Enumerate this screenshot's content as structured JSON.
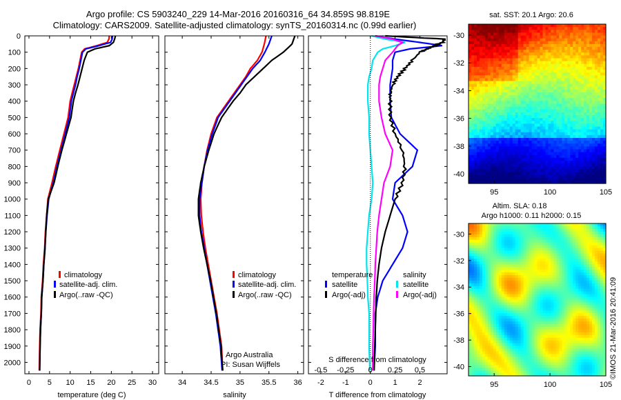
{
  "title": {
    "line1": "Argo profile: CS 5903240_229 14-Mar-2016 20160316_64 34.859S 98.819E",
    "line2": "Climatology: CARS2009. Satellite-adjusted climatology: synTS_20160314.nc (0.99d earlier)"
  },
  "colors": {
    "climatology": "#ff0000",
    "satellite_adj": "#0000ff",
    "argo": "#000000",
    "t_sat": "#00e5ee",
    "s_sat": "#00e5ee",
    "t_argo": "#000000",
    "s_argo": "#ff00ff"
  },
  "depth_axis": {
    "ticks": [
      0,
      100,
      200,
      300,
      400,
      500,
      600,
      700,
      800,
      900,
      1000,
      1100,
      1200,
      1300,
      1400,
      1500,
      1600,
      1700,
      1800,
      1900,
      2000
    ],
    "ylim": [
      0,
      2070
    ]
  },
  "chart_data": [
    {
      "type": "line",
      "name": "temperature",
      "xlabel": "temperature (deg C)",
      "xlim": [
        -1,
        31.5
      ],
      "xticks": [
        0,
        5,
        10,
        15,
        20,
        25,
        30
      ],
      "legend": {
        "placement": "lower-left",
        "items": [
          "climatology",
          "satellite-adj. clim.",
          "Argo(..raw -QC)"
        ]
      },
      "series": [
        {
          "name": "climatology",
          "color": "#ff0000",
          "x": [
            19.5,
            19.4,
            19.0,
            16.5,
            13.5,
            12.8,
            12.4,
            12.0,
            11.5,
            11.0,
            10.5,
            10.0,
            9.5,
            8.5,
            7.5,
            6.5,
            5.6,
            4.6,
            4.3,
            4.0,
            3.8,
            3.5,
            3.3,
            3.0,
            2.9,
            2.7,
            2.6,
            2.5
          ],
          "y": [
            0,
            20,
            40,
            60,
            80,
            100,
            150,
            200,
            250,
            300,
            350,
            400,
            500,
            600,
            700,
            800,
            900,
            1000,
            1100,
            1200,
            1300,
            1400,
            1500,
            1600,
            1700,
            1800,
            1900,
            2050
          ]
        },
        {
          "name": "satellite-adj. clim.",
          "color": "#0000ff",
          "x": [
            20.3,
            20.2,
            19.8,
            17.0,
            13.8,
            13.0,
            12.6,
            12.2,
            11.7,
            11.3,
            10.8,
            10.3,
            9.8,
            8.8,
            7.8,
            6.8,
            5.9,
            4.8,
            4.4,
            4.1,
            3.9,
            3.6,
            3.4,
            3.1,
            3.0,
            2.8,
            2.7,
            2.6
          ],
          "y": [
            0,
            20,
            40,
            60,
            80,
            100,
            150,
            200,
            250,
            300,
            350,
            400,
            500,
            600,
            700,
            800,
            900,
            1000,
            1100,
            1200,
            1300,
            1400,
            1500,
            1600,
            1700,
            1800,
            1900,
            2050
          ]
        },
        {
          "name": "Argo(..raw -QC)",
          "color": "#000000",
          "x": [
            21.0,
            20.8,
            20.5,
            19.5,
            16.0,
            14.2,
            13.4,
            12.9,
            12.4,
            11.9,
            11.3,
            10.8,
            10.2,
            9.1,
            8.0,
            7.0,
            6.1,
            4.7,
            4.3,
            4.1,
            3.9,
            3.6,
            3.4,
            3.1,
            3.0,
            2.8,
            2.7,
            2.6
          ],
          "y": [
            0,
            20,
            40,
            60,
            80,
            100,
            150,
            200,
            250,
            300,
            350,
            400,
            500,
            600,
            700,
            800,
            900,
            1000,
            1100,
            1200,
            1300,
            1400,
            1500,
            1600,
            1700,
            1800,
            1900,
            2050
          ]
        }
      ]
    },
    {
      "type": "line",
      "name": "salinity",
      "xlabel": "salinity",
      "xlim": [
        33.7,
        36.1
      ],
      "xticks": [
        34,
        34.5,
        35,
        35.5,
        36
      ],
      "xticklabels": [
        "34",
        "34.5",
        "35",
        "35.5",
        "36"
      ],
      "legend": {
        "placement": "lower-right",
        "items": [
          "climatology",
          "satellite-adj. clim.",
          "Argo(..raw -QC)"
        ]
      },
      "annotation": {
        "line1": "Argo Australia",
        "line2": "PI: Susan Wijffels"
      },
      "series": [
        {
          "name": "climatology",
          "color": "#ff0000",
          "x": [
            35.45,
            35.42,
            35.38,
            35.3,
            35.18,
            35.1,
            35.0,
            34.9,
            34.8,
            34.7,
            34.6,
            34.5,
            34.43,
            34.38,
            34.34,
            34.32,
            34.33,
            34.36,
            34.4,
            34.45,
            34.5,
            34.55,
            34.6,
            34.64,
            34.68,
            34.7
          ],
          "y": [
            0,
            50,
            100,
            150,
            200,
            250,
            300,
            350,
            400,
            450,
            500,
            600,
            700,
            800,
            900,
            1000,
            1100,
            1200,
            1300,
            1400,
            1500,
            1600,
            1700,
            1800,
            1900,
            2050
          ]
        },
        {
          "name": "satellite-adj. clim.",
          "color": "#0000ff",
          "x": [
            35.55,
            35.5,
            35.43,
            35.35,
            35.22,
            35.12,
            35.02,
            34.92,
            34.82,
            34.72,
            34.62,
            34.52,
            34.44,
            34.38,
            34.34,
            34.3,
            34.3,
            34.33,
            34.38,
            34.43,
            34.48,
            34.53,
            34.58,
            34.62,
            34.66,
            34.69
          ],
          "y": [
            0,
            50,
            100,
            150,
            200,
            250,
            300,
            350,
            400,
            450,
            500,
            600,
            700,
            800,
            900,
            1000,
            1100,
            1200,
            1300,
            1400,
            1500,
            1600,
            1700,
            1800,
            1900,
            2050
          ]
        },
        {
          "name": "Argo(..raw -QC)",
          "color": "#000000",
          "x": [
            35.95,
            35.9,
            35.75,
            35.55,
            35.4,
            35.25,
            35.1,
            35.0,
            34.88,
            34.78,
            34.68,
            34.55,
            34.46,
            34.38,
            34.32,
            34.28,
            34.28,
            34.32,
            34.37,
            34.43,
            34.49,
            34.54,
            34.59,
            34.63,
            34.67,
            34.7
          ],
          "y": [
            0,
            50,
            100,
            150,
            200,
            250,
            300,
            350,
            400,
            450,
            500,
            600,
            700,
            800,
            900,
            1000,
            1100,
            1200,
            1300,
            1400,
            1500,
            1600,
            1700,
            1800,
            1900,
            2050
          ]
        }
      ]
    },
    {
      "type": "line",
      "name": "differences",
      "xlabel": "T difference from climatology",
      "xlabel_top": "S difference from climatology",
      "xlim": [
        -2.5,
        3.1
      ],
      "xticks": [
        -2,
        -1,
        0,
        1,
        2
      ],
      "s_xticks": [
        -0.5,
        -0.25,
        0,
        0.25,
        0.5
      ],
      "s_xticklabels": [
        "-0.5",
        "-0.25",
        "0",
        "0.25",
        "0.5"
      ],
      "legend": {
        "placement": "lower-center",
        "temperature_header": "temperature",
        "salinity_header": "salinity",
        "t_items": [
          "satellite",
          "Argo(-adj)"
        ],
        "s_items": [
          "satellite",
          "Argo(-adj)"
        ]
      },
      "series": [
        {
          "name": "satellite",
          "color": "#0000ff",
          "x": [
            0.2,
            1.0,
            2.0,
            2.9,
            1.6,
            1.0,
            0.9,
            0.9,
            0.85,
            0.8,
            0.8,
            0.8,
            0.85,
            1.2,
            1.9,
            1.7,
            1.0,
            0.9,
            1.3,
            1.5,
            1.3,
            0.9,
            0.5,
            0.3,
            0.2,
            0.2,
            0.2,
            0.15
          ],
          "y": [
            0,
            20,
            40,
            60,
            80,
            100,
            150,
            200,
            250,
            300,
            350,
            400,
            500,
            600,
            700,
            800,
            900,
            1000,
            1100,
            1200,
            1300,
            1400,
            1500,
            1600,
            1700,
            1800,
            1900,
            2050
          ]
        },
        {
          "name": "satellite",
          "color": "#00e5ee",
          "x": [
            0.05,
            0.6,
            1.4,
            1.0,
            0.5,
            0.3,
            0.1,
            0.05,
            -0.05,
            -0.1,
            -0.1,
            -0.1,
            -0.05,
            -0.05,
            0.0,
            0.05,
            0.1,
            0.05,
            -0.05,
            -0.1,
            -0.15,
            -0.15,
            -0.12,
            -0.1,
            -0.05,
            -0.05,
            -0.05,
            -0.02
          ],
          "y": [
            0,
            20,
            40,
            60,
            80,
            100,
            150,
            200,
            250,
            300,
            350,
            400,
            500,
            600,
            700,
            800,
            900,
            1000,
            1100,
            1200,
            1300,
            1400,
            1500,
            1600,
            1700,
            1800,
            1900,
            2050
          ]
        },
        {
          "name": "Argo(-adj)",
          "color": "#000000",
          "x": [
            0.6,
            3.0,
            2.9,
            2.6,
            2.3,
            2.0,
            1.7,
            1.4,
            1.1,
            0.9,
            0.8,
            0.8,
            0.8,
            1.0,
            1.3,
            1.4,
            1.3,
            1.0,
            0.8,
            0.6,
            0.45,
            0.35,
            0.28,
            0.24,
            0.22,
            0.2,
            0.18,
            0.15
          ],
          "y": [
            0,
            20,
            40,
            60,
            80,
            100,
            150,
            200,
            250,
            300,
            350,
            400,
            500,
            600,
            700,
            800,
            900,
            1000,
            1100,
            1200,
            1300,
            1400,
            1500,
            1600,
            1700,
            1800,
            1900,
            2050
          ]
        },
        {
          "name": "Argo(-adj)",
          "color": "#ff00ff",
          "x": [
            0.2,
            0.9,
            1.3,
            1.1,
            1.0,
            0.9,
            0.6,
            0.5,
            0.4,
            0.35,
            0.35,
            0.35,
            0.45,
            0.6,
            0.9,
            0.8,
            0.55,
            0.45,
            0.35,
            0.28,
            0.24,
            0.2,
            0.18,
            0.15,
            0.13,
            0.12,
            0.1,
            0.1
          ],
          "y": [
            0,
            20,
            40,
            60,
            80,
            100,
            150,
            200,
            250,
            300,
            350,
            400,
            500,
            600,
            700,
            800,
            900,
            1000,
            1100,
            1200,
            1300,
            1400,
            1500,
            1600,
            1700,
            1800,
            1900,
            2050
          ]
        }
      ]
    },
    {
      "type": "heatmap",
      "name": "sst-map",
      "title": "sat. SST: 20.1  Argo: 20.6",
      "xlim": [
        92.7,
        105
      ],
      "ylim": [
        -40.7,
        -29.2
      ],
      "xticks": [
        95,
        100,
        105
      ],
      "yticks": [
        -30,
        -32,
        -34,
        -36,
        -38,
        -40
      ]
    },
    {
      "type": "heatmap",
      "name": "sla-map",
      "title_line1": "Altim. SLA: 0.18",
      "title_line2": "Argo h1000: 0.11 h2000: 0.15",
      "xlim": [
        92.7,
        105
      ],
      "ylim": [
        -40.7,
        -29.2
      ],
      "xticks": [
        95,
        100,
        105
      ],
      "yticks": [
        -30,
        -32,
        -34,
        -36,
        -38,
        -40
      ]
    }
  ],
  "credit": "©IMOS 21-Mar-2016 20:41:09"
}
